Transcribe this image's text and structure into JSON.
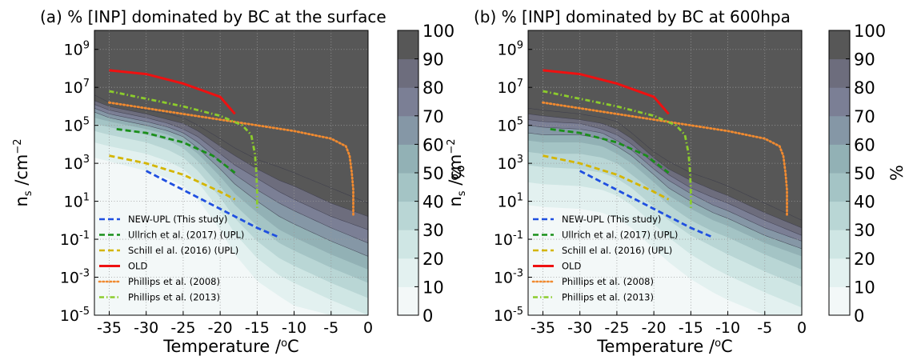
{
  "colorscale": {
    "levels": [
      0,
      10,
      20,
      30,
      40,
      50,
      60,
      70,
      80,
      90,
      100
    ],
    "colors": [
      "#f3f8f8",
      "#e3f1f0",
      "#cfe6e4",
      "#b9d6d5",
      "#a4c4c5",
      "#92b1b5",
      "#8597a6",
      "#7b7f95",
      "#6d6d7d",
      "#575757"
    ]
  },
  "chart_data": [
    {
      "type": "contour",
      "title": "(a) % [INP] dominated by BC at the surface",
      "xlabel": "Temperature /°C",
      "ylabel": "n_s /cm^-2",
      "colorbar_label": "%",
      "xlim": [
        -37,
        0
      ],
      "ylim_log10": [
        -5,
        10
      ],
      "x_ticks": [
        -35,
        -30,
        -25,
        -20,
        -15,
        -10,
        -5,
        0
      ],
      "y_ticks": [
        {
          "base": "10",
          "exp": "9",
          "value": 9
        },
        {
          "base": "10",
          "exp": "7",
          "value": 7
        },
        {
          "base": "10",
          "exp": "5",
          "value": 5
        },
        {
          "base": "10",
          "exp": "3",
          "value": 3
        },
        {
          "base": "10",
          "exp": "1",
          "value": 1
        },
        {
          "base": "10",
          "exp": "-1",
          "value": -1
        },
        {
          "base": "10",
          "exp": "-3",
          "value": -3
        },
        {
          "base": "10",
          "exp": "-5",
          "value": -5
        }
      ],
      "colorbar_ticks": [
        "100",
        "90",
        "80",
        "70",
        "60",
        "50",
        "40",
        "30",
        "20",
        "10",
        "0"
      ],
      "grid": true,
      "legend_location": "lower-left",
      "contour_boundaries_log10": {
        "x": [
          -37,
          -35,
          -30,
          -27,
          -25,
          -23,
          -20,
          -18,
          -15,
          -12,
          -10,
          -5,
          0
        ],
        "levels": {
          "100": [
            6.6,
            6.2,
            5.8,
            5.6,
            5.4,
            5.0,
            4.3,
            3.8,
            3.2,
            2.8,
            2.5,
            1.7,
            0.9
          ],
          "90": [
            6.3,
            6.0,
            5.6,
            5.3,
            5.1,
            4.7,
            3.9,
            3.4,
            2.7,
            2.1,
            1.8,
            0.9,
            0.2
          ],
          "80": [
            6.1,
            5.8,
            5.4,
            5.1,
            4.8,
            4.4,
            3.5,
            2.9,
            2.2,
            1.5,
            1.1,
            0.2,
            -0.5
          ],
          "70": [
            5.9,
            5.6,
            5.2,
            4.9,
            4.6,
            4.1,
            3.1,
            2.4,
            1.6,
            0.9,
            0.5,
            -0.4,
            -1.2
          ],
          "60": [
            5.7,
            5.4,
            5.0,
            4.7,
            4.4,
            3.8,
            2.7,
            1.9,
            1.0,
            0.2,
            -0.2,
            -1.1,
            -1.9
          ],
          "50": [
            5.4,
            5.2,
            4.8,
            4.5,
            4.1,
            3.5,
            2.3,
            1.4,
            0.4,
            -0.5,
            -0.9,
            -1.8,
            -2.6
          ],
          "40": [
            5.1,
            4.9,
            4.5,
            4.2,
            3.8,
            3.1,
            1.8,
            0.8,
            -0.3,
            -1.2,
            -1.6,
            -2.5,
            -3.3
          ],
          "30": [
            4.7,
            4.5,
            4.1,
            3.7,
            3.3,
            2.6,
            1.2,
            0.1,
            -1.1,
            -2.0,
            -2.4,
            -3.3,
            -4.1
          ],
          "20": [
            4.1,
            3.9,
            3.5,
            3.1,
            2.7,
            2.0,
            0.5,
            -0.7,
            -2.0,
            -2.9,
            -3.3,
            -4.2,
            -5.0
          ],
          "10": [
            3.3,
            3.1,
            2.6,
            2.2,
            1.8,
            1.1,
            -0.5,
            -1.8,
            -3.2,
            -4.0,
            -4.5,
            -5.0,
            -5.0
          ]
        }
      },
      "series": [
        {
          "name": "NEW-UPL (This study)",
          "style": "dashed",
          "color": "#1f4fe0",
          "x": [
            -30,
            -25,
            -20,
            -15,
            -12
          ],
          "y_log10": [
            2.6,
            1.6,
            0.6,
            -0.4,
            -0.9
          ]
        },
        {
          "name": "Ullrich et al. (2017) (UPL)",
          "style": "dashed",
          "color": "#1a8f1a",
          "x": [
            -34,
            -30,
            -25,
            -21,
            -18
          ],
          "y_log10": [
            4.8,
            4.6,
            4.1,
            3.4,
            2.5
          ]
        },
        {
          "name": "Schill el al. (2016) (UPL)",
          "style": "dashed",
          "color": "#d4b500",
          "x": [
            -35,
            -30,
            -25,
            -20,
            -18
          ],
          "y_log10": [
            3.4,
            3.0,
            2.4,
            1.5,
            1.1
          ]
        },
        {
          "name": "OLD",
          "style": "solid",
          "color": "#ee1111",
          "x": [
            -35,
            -30,
            -25,
            -20,
            -18
          ],
          "y_log10": [
            7.9,
            7.7,
            7.2,
            6.5,
            5.6
          ]
        },
        {
          "name": "Phillips et al. (2008)",
          "style": "dotted",
          "color": "#f08a30",
          "x": [
            -35,
            -30,
            -25,
            -20,
            -15,
            -10,
            -5,
            -3,
            -2.5,
            -2.2,
            -2,
            -2
          ],
          "y_log10": [
            6.2,
            5.9,
            5.6,
            5.3,
            5.0,
            4.7,
            4.3,
            3.9,
            3.4,
            2.5,
            1.6,
            0.3
          ]
        },
        {
          "name": "Phillips et al. (2013)",
          "style": "dashdot",
          "color": "#8ccc2c",
          "x": [
            -35,
            -30,
            -25,
            -20,
            -17,
            -15.8,
            -15.3,
            -15.1,
            -15,
            -15,
            -15
          ],
          "y_log10": [
            6.8,
            6.4,
            6.0,
            5.5,
            5.0,
            4.5,
            3.5,
            2.5,
            1.5,
            0.9,
            0.6
          ]
        }
      ]
    },
    {
      "type": "contour",
      "title": "(b) % [INP] dominated by BC at 600hpa",
      "xlabel": "Temperature /°C",
      "ylabel": "n_s /cm^-2",
      "colorbar_label": "%",
      "xlim": [
        -37,
        0
      ],
      "ylim_log10": [
        -5,
        10
      ],
      "x_ticks": [
        -35,
        -30,
        -25,
        -20,
        -15,
        -10,
        -5,
        0
      ],
      "y_ticks": [
        {
          "base": "10",
          "exp": "9",
          "value": 9
        },
        {
          "base": "10",
          "exp": "7",
          "value": 7
        },
        {
          "base": "10",
          "exp": "5",
          "value": 5
        },
        {
          "base": "10",
          "exp": "3",
          "value": 3
        },
        {
          "base": "10",
          "exp": "1",
          "value": 1
        },
        {
          "base": "10",
          "exp": "-1",
          "value": -1
        },
        {
          "base": "10",
          "exp": "-3",
          "value": -3
        },
        {
          "base": "10",
          "exp": "-5",
          "value": -5
        }
      ],
      "colorbar_ticks": [
        "100",
        "90",
        "80",
        "70",
        "60",
        "50",
        "40",
        "30",
        "20",
        "10",
        "0"
      ],
      "grid": true,
      "legend_location": "lower-left",
      "contour_boundaries_log10": {
        "x": [
          -37,
          -35,
          -30,
          -27,
          -25,
          -23,
          -20,
          -18,
          -15,
          -12,
          -10,
          -5,
          0
        ],
        "levels": {
          "100": [
            5.9,
            5.8,
            5.6,
            5.4,
            5.2,
            4.6,
            3.6,
            3.1,
            2.5,
            2.1,
            1.8,
            0.9,
            0.0
          ],
          "90": [
            5.6,
            5.5,
            5.3,
            5.1,
            4.8,
            4.3,
            3.3,
            2.7,
            2.1,
            1.6,
            1.3,
            0.4,
            -0.4
          ],
          "80": [
            5.3,
            5.2,
            5.1,
            4.8,
            4.5,
            4.0,
            3.0,
            2.4,
            1.7,
            1.2,
            0.9,
            0.0,
            -0.8
          ],
          "70": [
            5.0,
            4.9,
            4.8,
            4.6,
            4.2,
            3.7,
            2.7,
            2.1,
            1.4,
            0.8,
            0.5,
            -0.4,
            -1.1
          ],
          "60": [
            4.6,
            4.5,
            4.5,
            4.3,
            3.9,
            3.4,
            2.4,
            1.7,
            1.0,
            0.4,
            0.1,
            -0.8,
            -1.5
          ],
          "50": [
            4.2,
            4.1,
            4.1,
            3.9,
            3.5,
            3.0,
            2.0,
            1.3,
            0.6,
            0.0,
            -0.3,
            -1.2,
            -1.9
          ],
          "40": [
            3.6,
            3.5,
            3.5,
            3.3,
            3.0,
            2.4,
            1.5,
            0.8,
            0.0,
            -0.6,
            -0.9,
            -1.8,
            -2.6
          ],
          "30": [
            2.9,
            2.8,
            2.7,
            2.5,
            2.2,
            1.7,
            0.7,
            0.0,
            -0.8,
            -1.4,
            -1.8,
            -2.7,
            -3.5
          ],
          "20": [
            2.0,
            1.9,
            1.8,
            1.6,
            1.3,
            0.8,
            -0.2,
            -0.9,
            -1.8,
            -2.5,
            -2.9,
            -3.8,
            -4.6
          ],
          "10": [
            0.8,
            0.7,
            0.6,
            0.4,
            0.1,
            -0.4,
            -1.5,
            -2.2,
            -3.1,
            -3.8,
            -4.2,
            -5.0,
            -5.0
          ]
        }
      },
      "series": [
        {
          "name": "NEW-UPL (This study)",
          "style": "dashed",
          "color": "#1f4fe0",
          "x": [
            -30,
            -25,
            -20,
            -15,
            -12
          ],
          "y_log10": [
            2.6,
            1.6,
            0.6,
            -0.4,
            -0.9
          ]
        },
        {
          "name": "Ullrich et al. (2017) (UPL)",
          "style": "dashed",
          "color": "#1a8f1a",
          "x": [
            -34,
            -30,
            -25,
            -21,
            -18
          ],
          "y_log10": [
            4.8,
            4.6,
            4.1,
            3.4,
            2.5
          ]
        },
        {
          "name": "Schill el al. (2016) (UPL)",
          "style": "dashed",
          "color": "#d4b500",
          "x": [
            -35,
            -30,
            -25,
            -20,
            -18
          ],
          "y_log10": [
            3.4,
            3.0,
            2.4,
            1.5,
            1.1
          ]
        },
        {
          "name": "OLD",
          "style": "solid",
          "color": "#ee1111",
          "x": [
            -35,
            -30,
            -25,
            -20,
            -18
          ],
          "y_log10": [
            7.9,
            7.7,
            7.2,
            6.5,
            5.6
          ]
        },
        {
          "name": "Phillips et al. (2008)",
          "style": "dotted",
          "color": "#f08a30",
          "x": [
            -35,
            -30,
            -25,
            -20,
            -15,
            -10,
            -5,
            -3,
            -2.5,
            -2.2,
            -2,
            -2
          ],
          "y_log10": [
            6.2,
            5.9,
            5.6,
            5.3,
            5.0,
            4.7,
            4.3,
            3.9,
            3.4,
            2.5,
            1.6,
            0.3
          ]
        },
        {
          "name": "Phillips et al. (2013)",
          "style": "dashdot",
          "color": "#8ccc2c",
          "x": [
            -35,
            -30,
            -25,
            -20,
            -17,
            -15.8,
            -15.3,
            -15.1,
            -15,
            -15,
            -15
          ],
          "y_log10": [
            6.8,
            6.4,
            6.0,
            5.5,
            5.0,
            4.5,
            3.5,
            2.5,
            1.5,
            0.9,
            0.6
          ]
        }
      ]
    }
  ]
}
